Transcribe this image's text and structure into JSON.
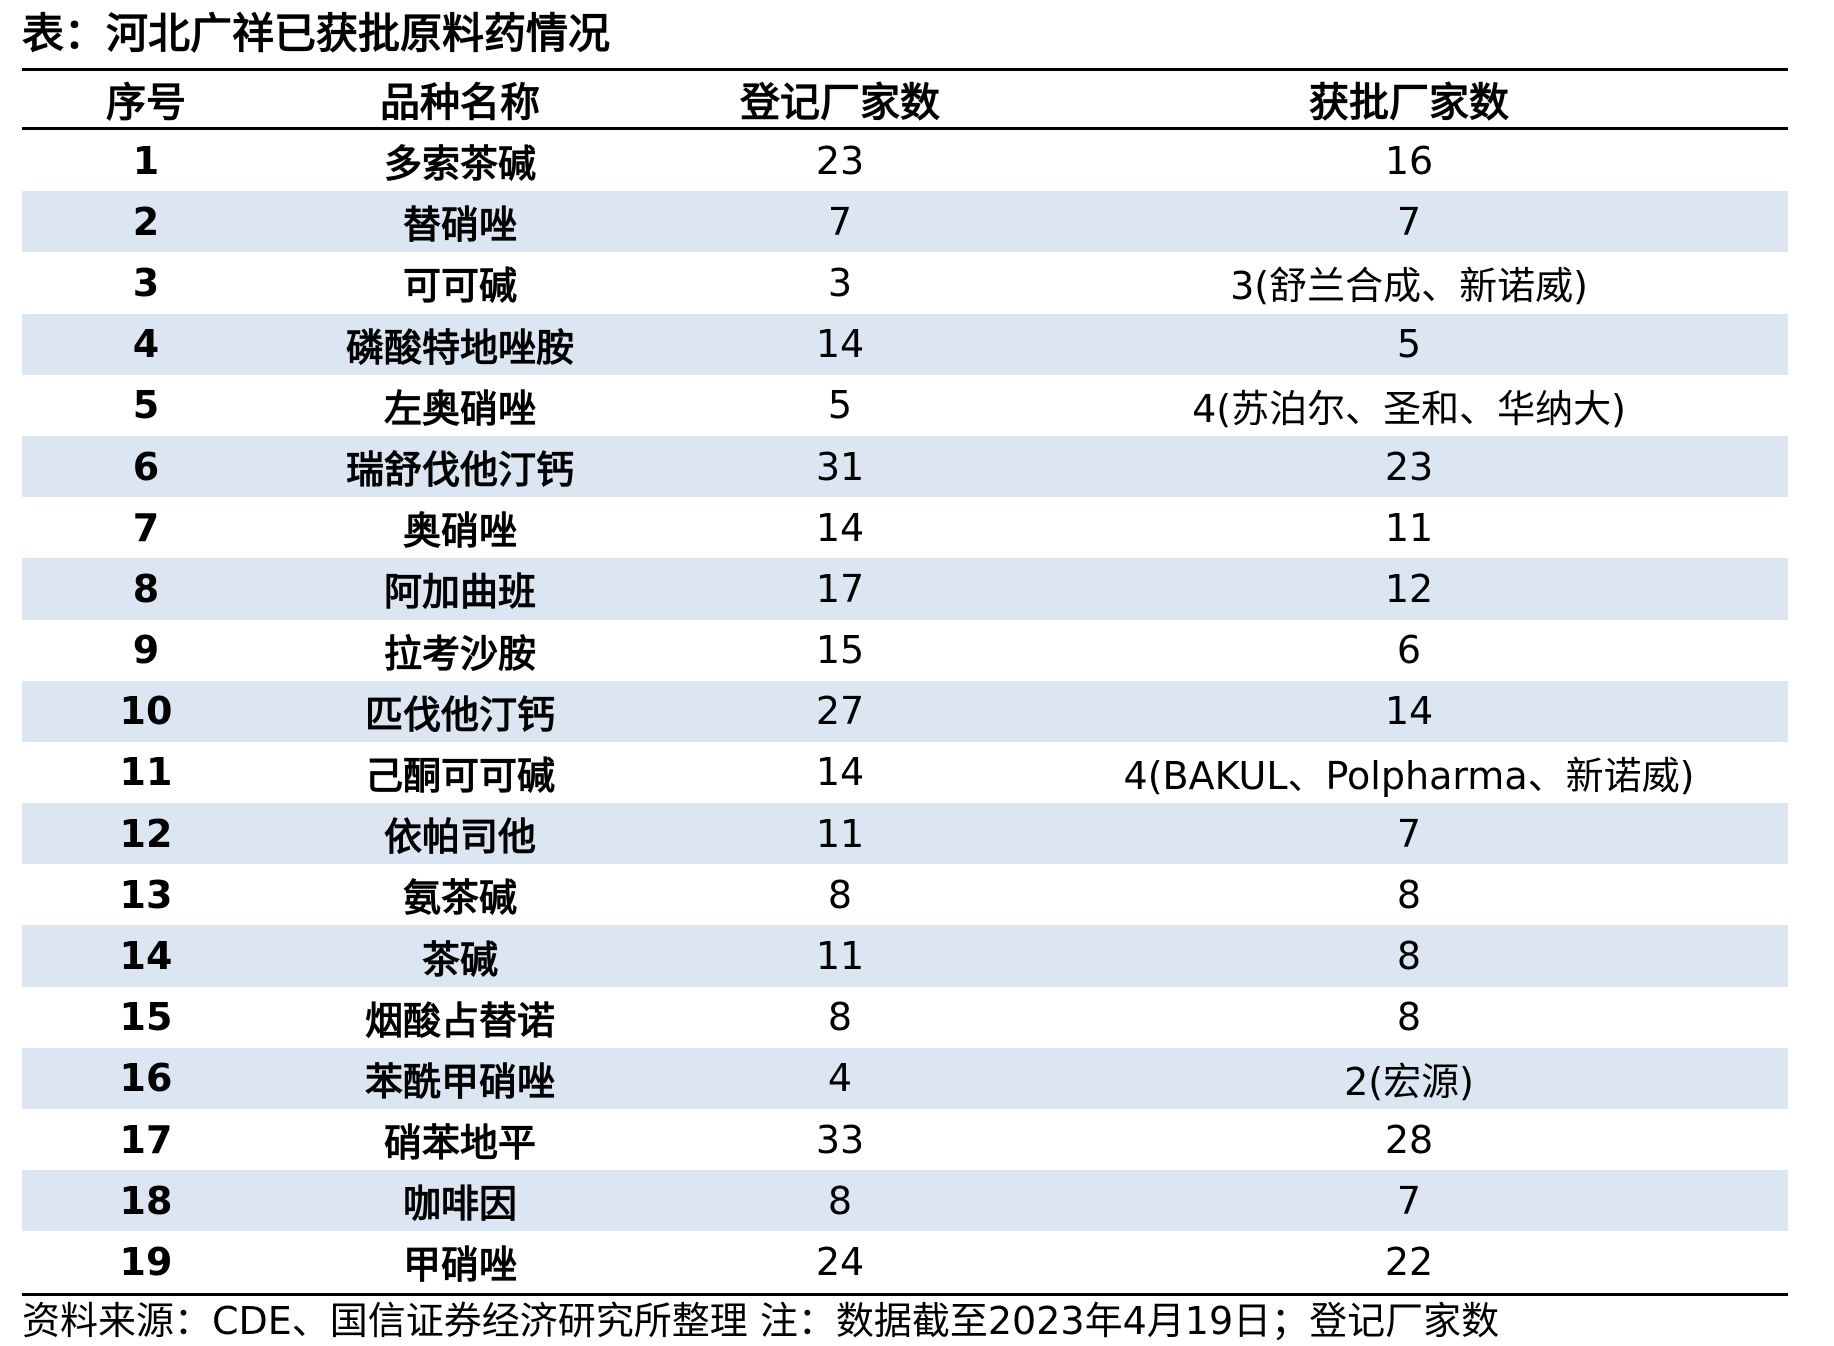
{
  "title": "表：河北广祥已获批原料药情况",
  "columns": [
    "序号",
    "品种名称",
    "登记厂家数",
    "获批厂家数"
  ],
  "rows": [
    [
      "1",
      "多索茶碱",
      "23",
      "16"
    ],
    [
      "2",
      "替硝唑",
      "7",
      "7"
    ],
    [
      "3",
      "可可碱",
      "3",
      "3(舒兰合成、新诺威)"
    ],
    [
      "4",
      "磷酸特地唑胺",
      "14",
      "5"
    ],
    [
      "5",
      "左奥硝唑",
      "5",
      "4(苏泊尔、圣和、华纳大)"
    ],
    [
      "6",
      "瑞舒伐他汀钙",
      "31",
      "23"
    ],
    [
      "7",
      "奥硝唑",
      "14",
      "11"
    ],
    [
      "8",
      "阿加曲班",
      "17",
      "12"
    ],
    [
      "9",
      "拉考沙胺",
      "15",
      "6"
    ],
    [
      "10",
      "匹伐他汀钙",
      "27",
      "14"
    ],
    [
      "11",
      "己酮可可碱",
      "14",
      "4(BAKUL、Polpharma、新诺威)"
    ],
    [
      "12",
      "依帕司他",
      "11",
      "7"
    ],
    [
      "13",
      "氨茶碱",
      "8",
      "8"
    ],
    [
      "14",
      "茶碱",
      "11",
      "8"
    ],
    [
      "15",
      "烟酸占替诺",
      "8",
      "8"
    ],
    [
      "16",
      "苯酰甲硝唑",
      "4",
      "2(宏源)"
    ],
    [
      "17",
      "硝苯地平",
      "33",
      "28"
    ],
    [
      "18",
      "咖啡因",
      "8",
      "7"
    ],
    [
      "19",
      "甲硝唑",
      "24",
      "22"
    ]
  ],
  "footer": "资料来源：CDE、国信证券经济研究所整理 注：数据截至2023年4月19日；登记厂家数",
  "colors": {
    "stripe": "#dce6f2",
    "rule": "#000000"
  }
}
